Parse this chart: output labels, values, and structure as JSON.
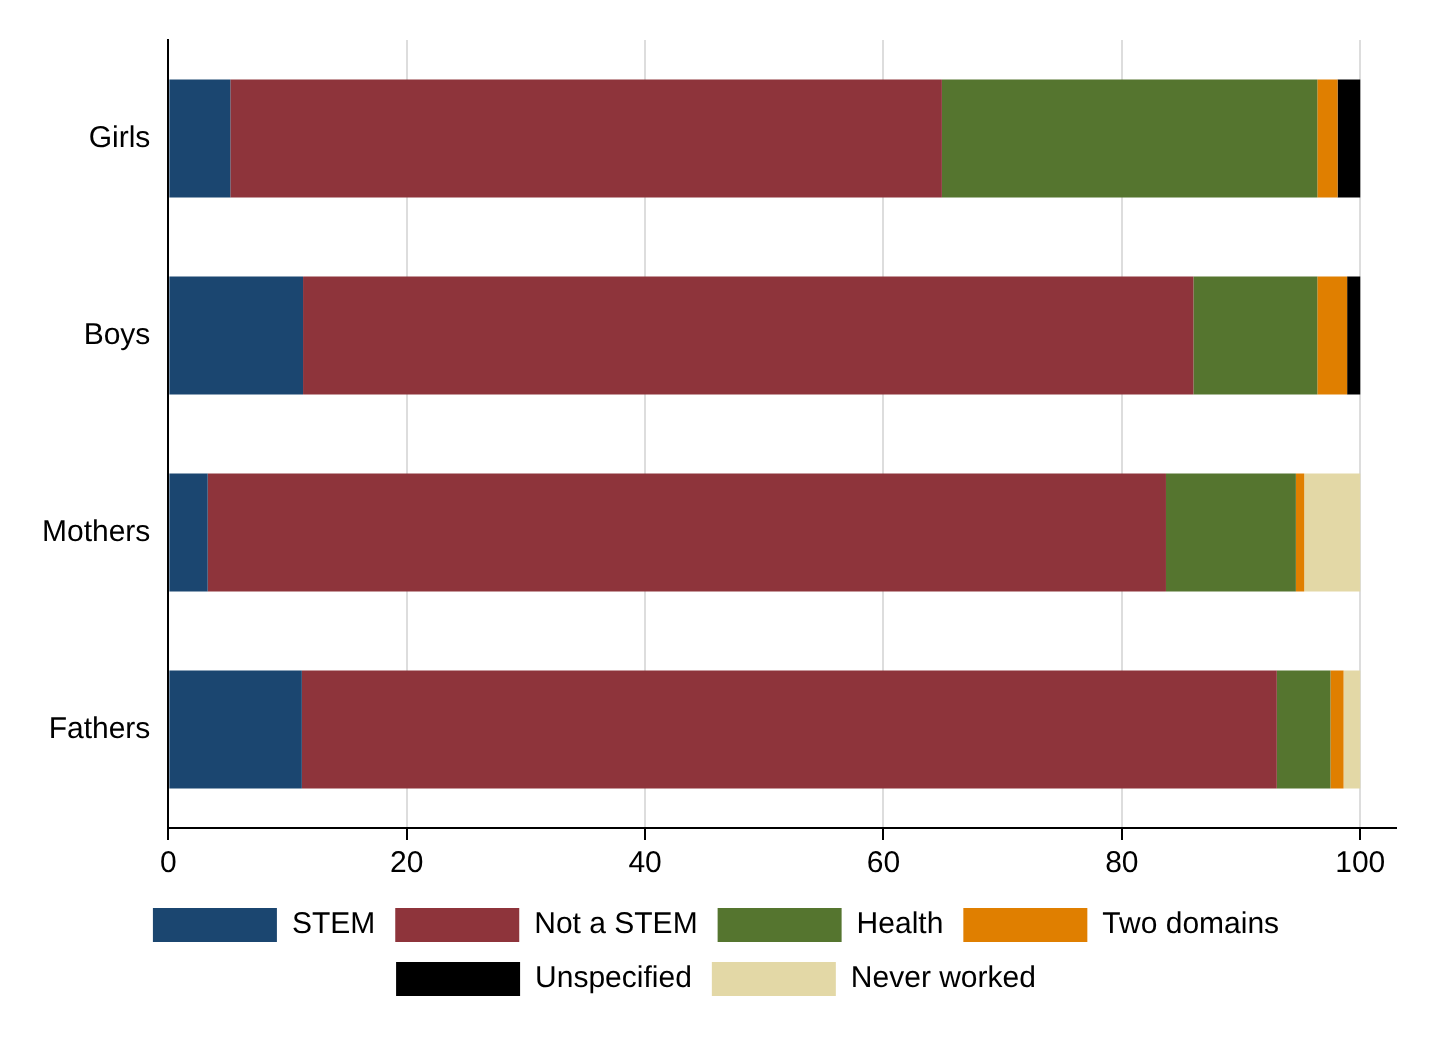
{
  "chart_data": {
    "type": "bar",
    "orientation": "horizontal",
    "stacked": true,
    "categories": [
      "Girls",
      "Boys",
      "Mothers",
      "Fathers"
    ],
    "series": [
      {
        "name": "STEM",
        "color": "#1b4670",
        "values": [
          5.2,
          11.3,
          3.3,
          11.2
        ]
      },
      {
        "name": "Not a STEM",
        "color": "#8e343b",
        "values": [
          59.7,
          74.7,
          80.4,
          81.8
        ]
      },
      {
        "name": "Health",
        "color": "#55752f",
        "values": [
          31.5,
          10.4,
          10.9,
          4.5
        ]
      },
      {
        "name": "Two domains",
        "color": "#e07f00",
        "values": [
          1.7,
          2.5,
          0.7,
          1.1
        ]
      },
      {
        "name": "Unspecified",
        "color": "#000000",
        "values": [
          1.9,
          1.1,
          0,
          0
        ]
      },
      {
        "name": "Never worked",
        "color": "#e3d8a6",
        "values": [
          0,
          0,
          4.7,
          1.4
        ]
      }
    ],
    "xlim": [
      0,
      103
    ],
    "xticks": [
      0,
      20,
      40,
      60,
      80,
      100
    ],
    "grid": "x",
    "legend": "bottom"
  }
}
